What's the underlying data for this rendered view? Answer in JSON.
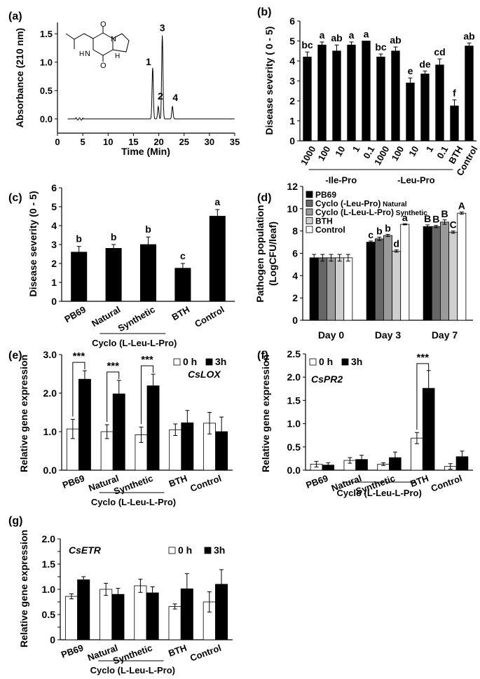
{
  "colors": {
    "black": "#000000",
    "white": "#ffffff",
    "dark_gray": "#666666",
    "mid_gray": "#9a9a9a",
    "light_gray": "#cfcfcf"
  },
  "chart_data": [
    {
      "panel": "(a)",
      "type": "line",
      "xlabel": "Time (Min)",
      "ylabel": "Absorbance (210 nm)",
      "xlim": [
        0,
        35
      ],
      "ylim": [
        -0.25,
        1.7
      ],
      "xticks": [
        "0",
        "5",
        "10",
        "15",
        "20",
        "25",
        "30",
        "35"
      ],
      "yticks": [
        "0.0",
        "0.5",
        "1.0",
        "1.5"
      ],
      "peaks": [
        {
          "label": "1",
          "x": 18.8,
          "y": 0.9
        },
        {
          "label": "2",
          "x": 19.9,
          "y": 0.22
        },
        {
          "label": "3",
          "x": 20.7,
          "y": 1.47
        },
        {
          "label": "4",
          "x": 22.7,
          "y": 0.22
        }
      ],
      "structure_labels": [
        "O",
        "O",
        "N",
        "N",
        "H",
        "H"
      ]
    },
    {
      "panel": "(b)",
      "type": "bar",
      "ylabel": "Disease severity ( 0 - 5)",
      "ylim": [
        0,
        6
      ],
      "yticks": [
        "0",
        "1",
        "2",
        "3",
        "4",
        "5",
        "6"
      ],
      "categories": [
        "1000",
        "100",
        "10",
        "1",
        "0.1",
        "1000",
        "100",
        "10",
        "1",
        "0.1",
        "BTH",
        "Control"
      ],
      "values": [
        4.2,
        4.8,
        4.5,
        4.8,
        5.0,
        4.2,
        4.5,
        2.9,
        3.35,
        3.8,
        1.75,
        4.75
      ],
      "errors": [
        0.25,
        0.15,
        0.3,
        0.15,
        0.0,
        0.15,
        0.2,
        0.25,
        0.15,
        0.3,
        0.3,
        0.15
      ],
      "letters": [
        "bc",
        "a",
        "ab",
        "a",
        "a",
        "bc",
        "ab",
        "e",
        "de",
        "cd",
        "f",
        "ab"
      ],
      "groups": [
        "-Ile-Pro",
        "-Leu-Pro"
      ]
    },
    {
      "panel": "(c)",
      "type": "bar",
      "ylabel": "Disease severity (0 - 5)",
      "ylim": [
        0,
        6
      ],
      "yticks": [
        "0",
        "1",
        "2",
        "3",
        "4",
        "5",
        "6"
      ],
      "categories": [
        "PB69",
        "Natural",
        "Synthetic",
        "BTH",
        "Control"
      ],
      "values": [
        2.6,
        2.8,
        3.0,
        1.75,
        4.5
      ],
      "errors": [
        0.3,
        0.2,
        0.4,
        0.25,
        0.35
      ],
      "letters": [
        "b",
        "b",
        "b",
        "c",
        "a"
      ],
      "group": "Cyclo (L-Leu-L-Pro)"
    },
    {
      "panel": "(d)",
      "type": "bar",
      "ylabel": "Pathogen population",
      "ylabel2": "(LogCFU/leaf)",
      "ylim": [
        0,
        12
      ],
      "yticks": [
        "0",
        "2",
        "4",
        "6",
        "8",
        "10",
        "12"
      ],
      "categories": [
        "Day 0",
        "Day 3",
        "Day 7"
      ],
      "series": [
        {
          "name": "PB69",
          "color": "#000000",
          "values": [
            5.6,
            7.0,
            8.4
          ],
          "errors": [
            0.3,
            0.1,
            0.15
          ],
          "letters": [
            "",
            "c",
            "B"
          ]
        },
        {
          "name": "Cyclo (-Leu-Pro)",
          "suffix": "Natural",
          "color": "#666666",
          "values": [
            5.6,
            7.3,
            8.4
          ],
          "errors": [
            0.3,
            0.15,
            0.1
          ],
          "letters": [
            "",
            "b",
            "B"
          ]
        },
        {
          "name": "Cyclo (L-Leu-L-Pro)",
          "suffix": "Synthetic",
          "color": "#9a9a9a",
          "values": [
            5.6,
            7.6,
            8.8
          ],
          "errors": [
            0.3,
            0.1,
            0.2
          ],
          "letters": [
            "",
            "b",
            "B"
          ]
        },
        {
          "name": "BTH",
          "color": "#cfcfcf",
          "values": [
            5.6,
            6.2,
            7.9
          ],
          "errors": [
            0.3,
            0.1,
            0.1
          ],
          "letters": [
            "",
            "d",
            "C"
          ]
        },
        {
          "name": "Control",
          "color": "#ffffff",
          "values": [
            5.6,
            8.6,
            9.6
          ],
          "errors": [
            0.3,
            0.05,
            0.1
          ],
          "letters": [
            "",
            "a",
            "A"
          ]
        }
      ]
    },
    {
      "panel": "(e)",
      "type": "bar",
      "gene": "CsLOX",
      "ylabel": "Relative gene expression",
      "ylim": [
        0,
        3
      ],
      "yticks": [
        "0.0",
        "1.0",
        "2.0",
        "3.0"
      ],
      "categories": [
        "PB69",
        "Natural",
        "Synthetic",
        "BTH",
        "Control"
      ],
      "series": [
        {
          "name": "0 h",
          "color": "#ffffff",
          "values": [
            1.07,
            1.0,
            0.92,
            1.05,
            1.22
          ],
          "errors": [
            0.25,
            0.18,
            0.2,
            0.15,
            0.28
          ]
        },
        {
          "name": "3h",
          "color": "#000000",
          "values": [
            2.36,
            1.98,
            2.19,
            1.23,
            1.0
          ],
          "errors": [
            0.22,
            0.35,
            0.3,
            0.32,
            0.38
          ]
        }
      ],
      "significance": [
        {
          "category": "PB69",
          "label": "***"
        },
        {
          "category": "Natural",
          "label": "***"
        },
        {
          "category": "Synthetic",
          "label": "***"
        }
      ],
      "group": "Cyclo (L-Leu-L-Pro)"
    },
    {
      "panel": "(f)",
      "type": "bar",
      "gene": "CsPR2",
      "ylabel": "Relative gene expression",
      "ylim": [
        0,
        2.5
      ],
      "yticks": [
        "0.0",
        "0.5",
        "1.0",
        "1.5",
        "2.0",
        "2.5"
      ],
      "categories": [
        "PB69",
        "Natural",
        "Synthetic",
        "BTH",
        "Control"
      ],
      "series": [
        {
          "name": "0 h",
          "color": "#ffffff",
          "values": [
            0.13,
            0.21,
            0.13,
            0.69,
            0.08
          ],
          "errors": [
            0.06,
            0.06,
            0.03,
            0.12,
            0.06
          ]
        },
        {
          "name": "3h",
          "color": "#000000",
          "values": [
            0.11,
            0.23,
            0.27,
            1.76,
            0.29
          ],
          "errors": [
            0.05,
            0.09,
            0.12,
            0.38,
            0.12
          ]
        }
      ],
      "significance": [
        {
          "category": "BTH",
          "label": "***"
        }
      ],
      "group": "Cyclo (L-Leu-L-Pro)"
    },
    {
      "panel": "(g)",
      "type": "bar",
      "gene": "CsETR",
      "ylabel": "Relative gene expression",
      "ylim": [
        0,
        2.0
      ],
      "yticks": [
        "0",
        "0.25",
        "0.5",
        "0.75",
        "1.0",
        "1.25",
        "1.5",
        "1.75",
        "2.0"
      ],
      "ytick_labels": [
        "0",
        "",
        "0.5",
        "",
        "1.0",
        "",
        "1.5",
        "",
        "2.0"
      ],
      "categories": [
        "PB69",
        "Natural",
        "Synthetic",
        "BTH",
        "Control"
      ],
      "series": [
        {
          "name": "0 h",
          "color": "#ffffff",
          "values": [
            0.86,
            1.0,
            1.07,
            0.66,
            0.75
          ],
          "errors": [
            0.05,
            0.12,
            0.13,
            0.05,
            0.2
          ]
        },
        {
          "name": "3h",
          "color": "#000000",
          "values": [
            1.19,
            0.9,
            0.93,
            1.01,
            1.1
          ],
          "errors": [
            0.06,
            0.12,
            0.12,
            0.3,
            0.29
          ]
        }
      ],
      "group": "Cyclo (L-Leu-L-Pro)"
    }
  ]
}
